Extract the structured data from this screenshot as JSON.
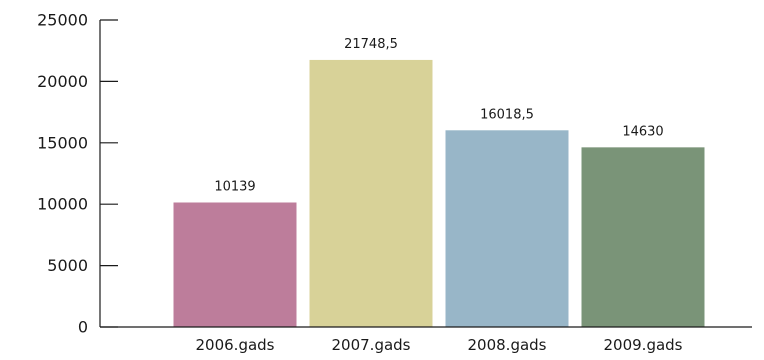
{
  "chart_data": {
    "type": "bar",
    "title": "",
    "xlabel": "",
    "ylabel": "",
    "categories": [
      "2006.gads",
      "2007.gads",
      "2008.gads",
      "2009.gads"
    ],
    "values": [
      10139,
      21748.5,
      16018.5,
      14630
    ],
    "data_labels": [
      "10139",
      "21748,5",
      "16018,5",
      "14630"
    ],
    "ylim": [
      0,
      25000
    ],
    "yticks": [
      0,
      5000,
      10000,
      15000,
      20000,
      25000
    ],
    "ytick_labels": [
      "0",
      "5000",
      "10000",
      "15000",
      "20000",
      "25000"
    ],
    "colors": [
      "#bd7d9b",
      "#d8d298",
      "#98b6c8",
      "#7a9478"
    ],
    "grid": false,
    "legend": "none"
  }
}
